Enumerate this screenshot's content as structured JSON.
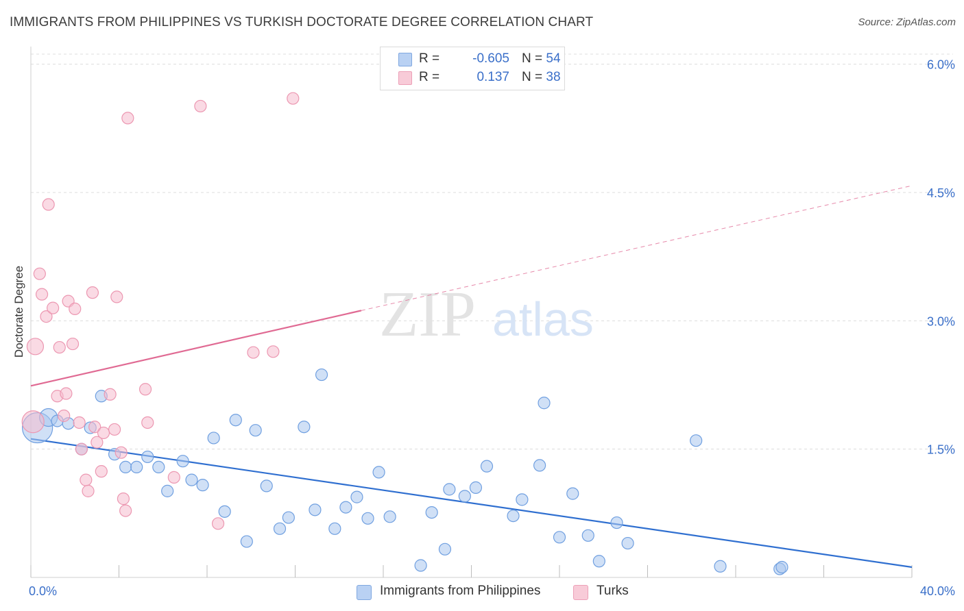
{
  "title": "IMMIGRANTS FROM PHILIPPINES VS TURKISH DOCTORATE DEGREE CORRELATION CHART",
  "source": "Source: ZipAtlas.com",
  "watermark": {
    "zip": "ZIP",
    "atlas": "atlas"
  },
  "legend": {
    "blue": {
      "r_label": "R =",
      "r_value": "-0.605",
      "n_label": "N =",
      "n_value": "54"
    },
    "pink": {
      "r_label": "R =",
      "r_value": "0.137",
      "n_label": "N =",
      "n_value": "38"
    }
  },
  "bottom_legend": {
    "blue": "Immigrants from Philippines",
    "pink": "Turks"
  },
  "colors": {
    "blue_fill": "#a9c6ef",
    "blue_stroke": "#6f9fe0",
    "blue_line": "#2f6fd0",
    "pink_fill": "#f5bccd",
    "pink_stroke": "#ec97b1",
    "pink_line": "#e06a93",
    "tick_label": "#3a6fc9",
    "grid": "#dcdcdc"
  },
  "chart_data": {
    "type": "scatter",
    "title": "IMMIGRANTS FROM PHILIPPINES VS TURKISH DOCTORATE DEGREE CORRELATION CHART",
    "xlabel": "",
    "ylabel": "Doctorate Degree",
    "xlim": [
      0,
      40
    ],
    "ylim": [
      0,
      6.15
    ],
    "x_tick_labels": [
      {
        "value": 0,
        "label": "0.0%"
      },
      {
        "value": 40,
        "label": "40.0%"
      }
    ],
    "y_tick_labels": [
      {
        "value": 1.5,
        "label": "1.5%"
      },
      {
        "value": 3.0,
        "label": "3.0%"
      },
      {
        "value": 4.5,
        "label": "4.5%"
      },
      {
        "value": 6.0,
        "label": "6.0%"
      }
    ],
    "grid": "horizontal dashed",
    "legend_position": "top-center",
    "series": [
      {
        "name": "Immigrants from Philippines",
        "color": "#a9c6ef",
        "trend": {
          "x": [
            0,
            40
          ],
          "y": [
            1.62,
            0.12
          ],
          "style": "solid"
        },
        "points": [
          {
            "x": 0.3,
            "y": 1.75,
            "s": 22
          },
          {
            "x": 0.8,
            "y": 1.87,
            "s": 13
          },
          {
            "x": 1.2,
            "y": 1.83
          },
          {
            "x": 1.7,
            "y": 1.8
          },
          {
            "x": 2.3,
            "y": 1.5
          },
          {
            "x": 2.7,
            "y": 1.75
          },
          {
            "x": 3.2,
            "y": 2.12
          },
          {
            "x": 3.8,
            "y": 1.44
          },
          {
            "x": 4.3,
            "y": 1.29
          },
          {
            "x": 4.8,
            "y": 1.29
          },
          {
            "x": 5.3,
            "y": 1.41
          },
          {
            "x": 5.8,
            "y": 1.29
          },
          {
            "x": 6.2,
            "y": 1.01
          },
          {
            "x": 6.9,
            "y": 1.36
          },
          {
            "x": 7.3,
            "y": 1.14
          },
          {
            "x": 7.8,
            "y": 1.08
          },
          {
            "x": 8.3,
            "y": 1.63
          },
          {
            "x": 8.8,
            "y": 0.77
          },
          {
            "x": 9.3,
            "y": 1.84
          },
          {
            "x": 9.8,
            "y": 0.42
          },
          {
            "x": 10.2,
            "y": 1.72
          },
          {
            "x": 10.7,
            "y": 1.07
          },
          {
            "x": 11.3,
            "y": 0.57
          },
          {
            "x": 11.7,
            "y": 0.7
          },
          {
            "x": 12.4,
            "y": 1.76
          },
          {
            "x": 12.9,
            "y": 0.79
          },
          {
            "x": 13.2,
            "y": 2.37
          },
          {
            "x": 13.8,
            "y": 0.57
          },
          {
            "x": 14.3,
            "y": 0.82
          },
          {
            "x": 14.8,
            "y": 0.94
          },
          {
            "x": 15.3,
            "y": 0.69
          },
          {
            "x": 15.8,
            "y": 1.23
          },
          {
            "x": 16.3,
            "y": 0.71
          },
          {
            "x": 17.7,
            "y": 0.14
          },
          {
            "x": 18.2,
            "y": 0.76
          },
          {
            "x": 18.8,
            "y": 0.33
          },
          {
            "x": 19.0,
            "y": 1.03
          },
          {
            "x": 19.7,
            "y": 0.95
          },
          {
            "x": 20.2,
            "y": 1.05
          },
          {
            "x": 20.7,
            "y": 1.3
          },
          {
            "x": 21.9,
            "y": 0.72
          },
          {
            "x": 22.3,
            "y": 0.91
          },
          {
            "x": 23.1,
            "y": 1.31
          },
          {
            "x": 23.3,
            "y": 2.04
          },
          {
            "x": 24.0,
            "y": 0.47
          },
          {
            "x": 24.6,
            "y": 0.98
          },
          {
            "x": 25.3,
            "y": 0.49
          },
          {
            "x": 25.8,
            "y": 0.19
          },
          {
            "x": 26.6,
            "y": 0.64
          },
          {
            "x": 27.1,
            "y": 0.4
          },
          {
            "x": 30.2,
            "y": 1.6
          },
          {
            "x": 31.3,
            "y": 0.13
          },
          {
            "x": 34.0,
            "y": 0.1
          },
          {
            "x": 34.1,
            "y": 0.12
          }
        ]
      },
      {
        "name": "Turks",
        "color": "#f5bccd",
        "trend": {
          "x": [
            0,
            15
          ],
          "y": [
            2.24,
            3.12
          ],
          "style": "solid",
          "extension": {
            "x": [
              15,
              40
            ],
            "y": [
              3.12,
              4.58
            ],
            "style": "dashed"
          }
        },
        "points": [
          {
            "x": 0.1,
            "y": 1.82,
            "s": 16
          },
          {
            "x": 0.2,
            "y": 2.7,
            "s": 12
          },
          {
            "x": 0.4,
            "y": 3.55
          },
          {
            "x": 0.5,
            "y": 3.31
          },
          {
            "x": 0.7,
            "y": 3.05
          },
          {
            "x": 0.8,
            "y": 4.36
          },
          {
            "x": 1.0,
            "y": 3.15
          },
          {
            "x": 1.2,
            "y": 2.12
          },
          {
            "x": 1.3,
            "y": 2.69
          },
          {
            "x": 1.5,
            "y": 1.89
          },
          {
            "x": 1.6,
            "y": 2.15
          },
          {
            "x": 1.7,
            "y": 3.23
          },
          {
            "x": 1.9,
            "y": 2.73
          },
          {
            "x": 2.0,
            "y": 3.14
          },
          {
            "x": 2.2,
            "y": 1.81
          },
          {
            "x": 2.3,
            "y": 1.5
          },
          {
            "x": 2.5,
            "y": 1.14
          },
          {
            "x": 2.6,
            "y": 1.01
          },
          {
            "x": 2.8,
            "y": 3.33
          },
          {
            "x": 2.9,
            "y": 1.76
          },
          {
            "x": 3.0,
            "y": 1.58
          },
          {
            "x": 3.2,
            "y": 1.24
          },
          {
            "x": 3.3,
            "y": 1.69
          },
          {
            "x": 3.6,
            "y": 2.14
          },
          {
            "x": 3.8,
            "y": 1.73
          },
          {
            "x": 3.9,
            "y": 3.28
          },
          {
            "x": 4.1,
            "y": 1.46
          },
          {
            "x": 4.2,
            "y": 0.92
          },
          {
            "x": 4.3,
            "y": 0.78
          },
          {
            "x": 4.4,
            "y": 5.37
          },
          {
            "x": 5.2,
            "y": 2.2
          },
          {
            "x": 5.3,
            "y": 1.81
          },
          {
            "x": 6.5,
            "y": 1.17
          },
          {
            "x": 7.7,
            "y": 5.51
          },
          {
            "x": 8.5,
            "y": 0.63
          },
          {
            "x": 10.1,
            "y": 2.63
          },
          {
            "x": 11.0,
            "y": 2.64
          },
          {
            "x": 11.9,
            "y": 5.6
          }
        ]
      }
    ]
  }
}
